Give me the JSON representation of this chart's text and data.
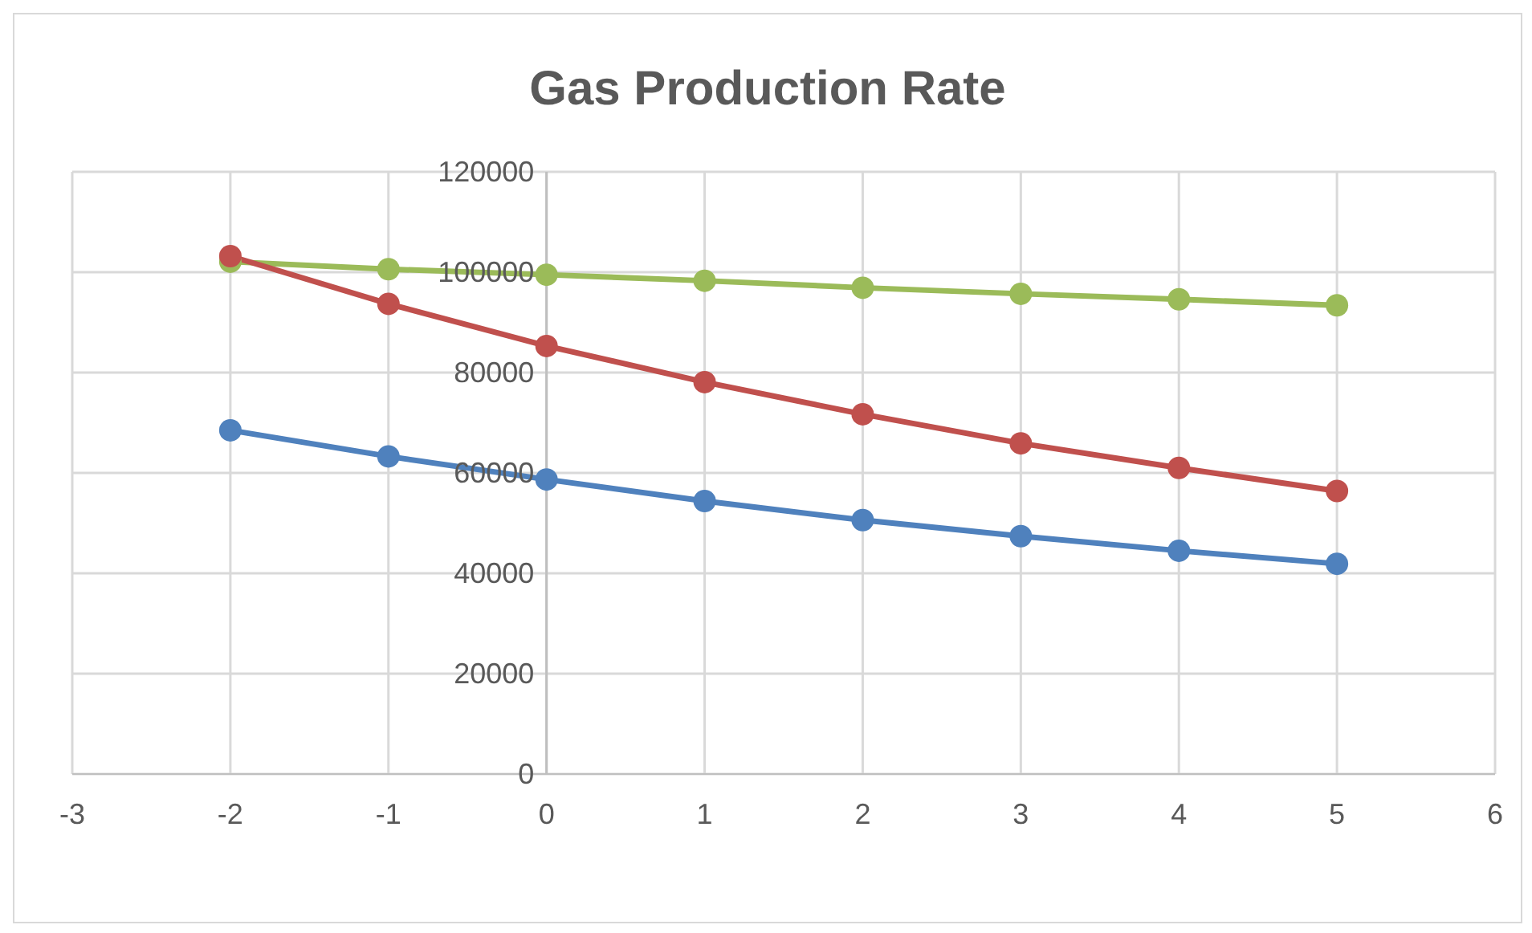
{
  "chart_data": {
    "type": "line",
    "title": "Gas Production Rate",
    "x": [
      -2,
      -1,
      0,
      1,
      2,
      3,
      4,
      5
    ],
    "series": [
      {
        "color": "#4f81bd",
        "values": [
          68500,
          63300,
          58700,
          54400,
          50600,
          47400,
          44500,
          41900
        ]
      },
      {
        "color": "#c0504d",
        "values": [
          103200,
          93700,
          85300,
          78100,
          71700,
          65900,
          61000,
          56400
        ]
      },
      {
        "color": "#9bbb59",
        "values": [
          102100,
          100600,
          99500,
          98300,
          96900,
          95700,
          94600,
          93400
        ]
      }
    ],
    "xlim": [
      -3,
      6
    ],
    "xticks": [
      -3,
      -2,
      -1,
      0,
      1,
      2,
      3,
      4,
      5,
      6
    ],
    "ylim": [
      0,
      120000
    ],
    "yticks": [
      0,
      20000,
      40000,
      60000,
      80000,
      100000,
      120000
    ],
    "grid": true,
    "legend": false,
    "marker": "circle",
    "line_style": "solid"
  }
}
